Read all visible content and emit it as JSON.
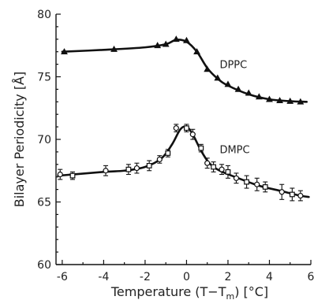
{
  "chart_data": {
    "type": "line",
    "xlabel_main": "Temperature (T−T",
    "xlabel_sub": "m",
    "xlabel_tail": ") [°C]",
    "ylabel": "Bilayer Periodicity [Å]",
    "xlim": [
      -6.3,
      6.0
    ],
    "ylim": [
      60,
      80
    ],
    "x_ticks": [
      -6,
      -4,
      -2,
      0,
      2,
      4,
      6
    ],
    "x_tick_labels": [
      "-6",
      "-4",
      "-2",
      "0",
      "2",
      "4",
      "6"
    ],
    "y_ticks": [
      60,
      65,
      70,
      75,
      80
    ],
    "y_tick_labels": [
      "60",
      "65",
      "70",
      "75",
      "80"
    ],
    "series": [
      {
        "name": "DPPC",
        "marker": "triangle",
        "points": [
          {
            "x": -5.9,
            "y": 77.0
          },
          {
            "x": -3.5,
            "y": 77.2
          },
          {
            "x": -1.4,
            "y": 77.5
          },
          {
            "x": -1.0,
            "y": 77.6
          },
          {
            "x": -0.5,
            "y": 78.0
          },
          {
            "x": 0.0,
            "y": 77.9
          },
          {
            "x": 0.5,
            "y": 77.0
          },
          {
            "x": 1.0,
            "y": 75.6
          },
          {
            "x": 1.5,
            "y": 74.9
          },
          {
            "x": 2.0,
            "y": 74.4
          },
          {
            "x": 2.5,
            "y": 74.0
          },
          {
            "x": 3.0,
            "y": 73.7
          },
          {
            "x": 3.5,
            "y": 73.4
          },
          {
            "x": 4.0,
            "y": 73.2
          },
          {
            "x": 4.5,
            "y": 73.1
          },
          {
            "x": 5.0,
            "y": 73.05
          },
          {
            "x": 5.5,
            "y": 73.0
          }
        ],
        "curve": [
          {
            "x": -6.0,
            "y": 77.0
          },
          {
            "x": -4.0,
            "y": 77.15
          },
          {
            "x": -2.0,
            "y": 77.35
          },
          {
            "x": -1.0,
            "y": 77.6
          },
          {
            "x": -0.5,
            "y": 77.95
          },
          {
            "x": 0.0,
            "y": 77.8
          },
          {
            "x": 0.5,
            "y": 77.0
          },
          {
            "x": 1.0,
            "y": 75.7
          },
          {
            "x": 1.5,
            "y": 74.85
          },
          {
            "x": 2.0,
            "y": 74.3
          },
          {
            "x": 3.0,
            "y": 73.6
          },
          {
            "x": 4.0,
            "y": 73.2
          },
          {
            "x": 5.0,
            "y": 73.05
          },
          {
            "x": 5.8,
            "y": 73.0
          }
        ]
      },
      {
        "name": "DMPC",
        "marker": "circle-square",
        "points": [
          {
            "x": -6.1,
            "y": 67.2,
            "err": 0.4
          },
          {
            "x": -5.5,
            "y": 67.1,
            "err": 0.3
          },
          {
            "x": -3.9,
            "y": 67.5,
            "err": 0.4
          },
          {
            "x": -2.8,
            "y": 67.6,
            "err": 0.4
          },
          {
            "x": -2.4,
            "y": 67.7,
            "err": 0.4
          },
          {
            "x": -1.8,
            "y": 67.9,
            "err": 0.4
          },
          {
            "x": -1.3,
            "y": 68.4,
            "err": 0.3
          },
          {
            "x": -0.9,
            "y": 68.9,
            "err": 0.3
          },
          {
            "x": -0.5,
            "y": 70.9,
            "err": 0.3
          },
          {
            "x": 0.0,
            "y": 70.9,
            "err": 0.3
          },
          {
            "x": 0.3,
            "y": 70.4,
            "err": 0.4
          },
          {
            "x": 0.7,
            "y": 69.3,
            "err": 0.3
          },
          {
            "x": 1.0,
            "y": 68.1,
            "err": 0.4
          },
          {
            "x": 1.3,
            "y": 67.8,
            "err": 0.4
          },
          {
            "x": 1.7,
            "y": 67.6,
            "err": 0.4
          },
          {
            "x": 2.0,
            "y": 67.4,
            "err": 0.5
          },
          {
            "x": 2.4,
            "y": 66.9,
            "err": 0.4
          },
          {
            "x": 2.9,
            "y": 66.6,
            "err": 0.5
          },
          {
            "x": 3.4,
            "y": 66.4,
            "err": 0.5
          },
          {
            "x": 3.8,
            "y": 66.2,
            "err": 0.4
          },
          {
            "x": 4.6,
            "y": 65.8,
            "err": 0.6
          },
          {
            "x": 5.1,
            "y": 65.6,
            "err": 0.5
          },
          {
            "x": 5.5,
            "y": 65.5,
            "err": 0.4
          }
        ],
        "curve": [
          {
            "x": -6.2,
            "y": 67.1
          },
          {
            "x": -4.0,
            "y": 67.4
          },
          {
            "x": -3.0,
            "y": 67.5
          },
          {
            "x": -2.0,
            "y": 67.8
          },
          {
            "x": -1.2,
            "y": 68.5
          },
          {
            "x": -0.7,
            "y": 69.6
          },
          {
            "x": -0.3,
            "y": 70.8
          },
          {
            "x": 0.0,
            "y": 71.0
          },
          {
            "x": 0.3,
            "y": 70.4
          },
          {
            "x": 0.7,
            "y": 69.1
          },
          {
            "x": 1.1,
            "y": 68.1
          },
          {
            "x": 1.6,
            "y": 67.5
          },
          {
            "x": 2.5,
            "y": 66.9
          },
          {
            "x": 3.5,
            "y": 66.3
          },
          {
            "x": 4.5,
            "y": 65.9
          },
          {
            "x": 5.5,
            "y": 65.5
          },
          {
            "x": 5.9,
            "y": 65.4
          }
        ]
      }
    ],
    "annotations": [
      {
        "text": "DPPC",
        "x": 1.6,
        "y": 75.7
      },
      {
        "text": "DMPC",
        "x": 1.6,
        "y": 68.9
      }
    ]
  }
}
